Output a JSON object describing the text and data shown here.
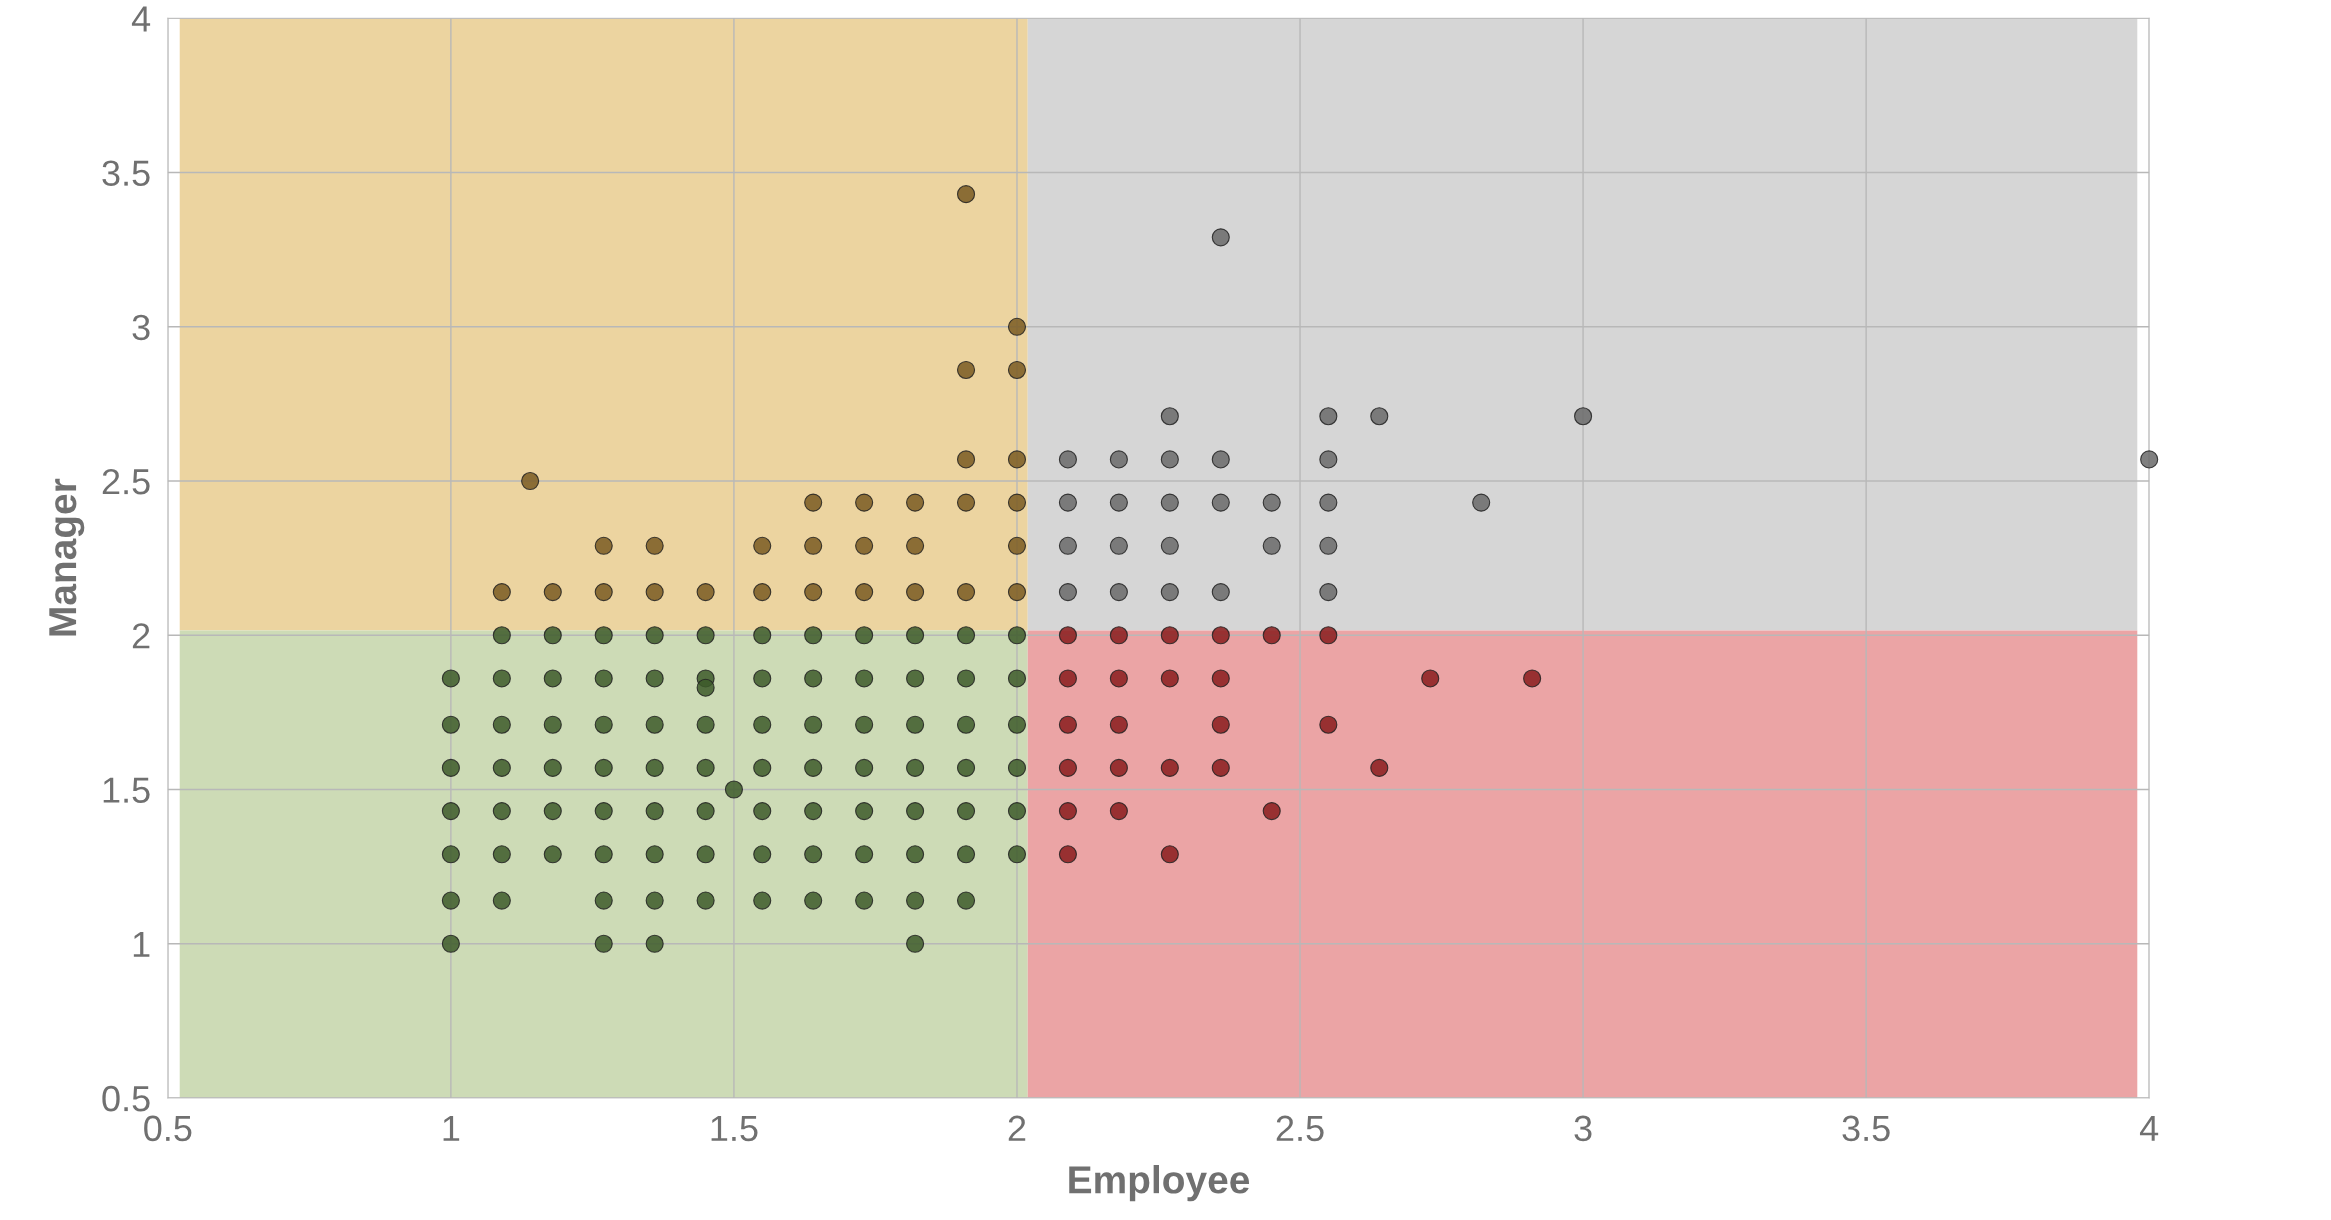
{
  "chart_data": {
    "type": "scatter",
    "xlabel": "Employee",
    "ylabel": "Manager",
    "xlim": [
      0.5,
      4
    ],
    "ylim": [
      0.5,
      4
    ],
    "xticks": [
      0.5,
      1,
      1.5,
      2,
      2.5,
      3,
      3.5,
      4
    ],
    "yticks": [
      0.5,
      1,
      1.5,
      2,
      2.5,
      3,
      3.5,
      4
    ],
    "grid": true,
    "marker": "circle",
    "series": [
      {
        "color": "#3d5a2a",
        "x": [
          1,
          1.09,
          1.18,
          1.27,
          1.36,
          1.45,
          1.55,
          1.64,
          1.73,
          1.82,
          1.91,
          2,
          1.09,
          1.18,
          1.27,
          1.36,
          1.45,
          1.55,
          1.64,
          1.73,
          1.82,
          1.91,
          2,
          1,
          1.09,
          1.18,
          1.27,
          1.36,
          1.45,
          1.55,
          1.64,
          1.73,
          1.82,
          1.91,
          2,
          1,
          1.09,
          1.18,
          1.27,
          1.36,
          1.45,
          1.55,
          1.64,
          1.73,
          1.82,
          1.91,
          2,
          1,
          1.09,
          1.18,
          1.27,
          1.36,
          1.45,
          1.55,
          1.64,
          1.73,
          1.82,
          1.91,
          2,
          1,
          1.09,
          1.18,
          1.27,
          1.36,
          1.45,
          1.55,
          1.64,
          1.73,
          1.82,
          1.91,
          2,
          1,
          1.09,
          1.27,
          1.36,
          1.45,
          1.55,
          1.64,
          1.73,
          1.82,
          1.91,
          1,
          1.27,
          1.36,
          1.82,
          1.5,
          1.45
        ],
        "values": [
          1.86,
          1.86,
          1.86,
          1.86,
          1.86,
          1.86,
          1.86,
          1.86,
          1.86,
          1.86,
          1.86,
          1.86,
          2,
          2,
          2,
          2,
          2,
          2,
          2,
          2,
          2,
          2,
          2,
          1.71,
          1.71,
          1.71,
          1.71,
          1.71,
          1.71,
          1.71,
          1.71,
          1.71,
          1.71,
          1.71,
          1.71,
          1.57,
          1.57,
          1.57,
          1.57,
          1.57,
          1.57,
          1.57,
          1.57,
          1.57,
          1.57,
          1.57,
          1.57,
          1.43,
          1.43,
          1.43,
          1.43,
          1.43,
          1.43,
          1.43,
          1.43,
          1.43,
          1.43,
          1.43,
          1.43,
          1.29,
          1.29,
          1.29,
          1.29,
          1.29,
          1.29,
          1.29,
          1.29,
          1.29,
          1.29,
          1.29,
          1.29,
          1.14,
          1.14,
          1.14,
          1.14,
          1.14,
          1.14,
          1.14,
          1.14,
          1.14,
          1.14,
          1,
          1,
          1,
          1,
          1.5,
          1.83
        ]
      },
      {
        "color": "#7a5a22",
        "x": [
          1.09,
          1.18,
          1.27,
          1.36,
          1.45,
          1.55,
          1.64,
          1.73,
          1.82,
          1.91,
          2,
          1.27,
          1.36,
          1.55,
          1.64,
          1.73,
          1.82,
          2,
          1.64,
          1.73,
          1.82,
          1.91,
          2,
          1.91,
          2,
          1.91,
          2,
          2,
          1.91,
          1.14
        ],
        "values": [
          2.14,
          2.14,
          2.14,
          2.14,
          2.14,
          2.14,
          2.14,
          2.14,
          2.14,
          2.14,
          2.14,
          2.29,
          2.29,
          2.29,
          2.29,
          2.29,
          2.29,
          2.29,
          2.43,
          2.43,
          2.43,
          2.43,
          2.43,
          2.57,
          2.57,
          2.86,
          2.86,
          3,
          3.43,
          2.5
        ]
      },
      {
        "color": "#6a6a6a",
        "x": [
          2.09,
          2.18,
          2.27,
          2.36,
          2.55,
          2.09,
          2.18,
          2.27,
          2.45,
          2.55,
          2.09,
          2.18,
          2.27,
          2.36,
          2.45,
          2.55,
          2.82,
          2.09,
          2.18,
          2.27,
          2.36,
          2.55,
          4,
          2.27,
          2.55,
          2.64,
          3,
          2.36
        ],
        "values": [
          2.14,
          2.14,
          2.14,
          2.14,
          2.14,
          2.29,
          2.29,
          2.29,
          2.29,
          2.29,
          2.43,
          2.43,
          2.43,
          2.43,
          2.43,
          2.43,
          2.43,
          2.57,
          2.57,
          2.57,
          2.57,
          2.57,
          2.57,
          2.71,
          2.71,
          2.71,
          2.71,
          3.29
        ]
      },
      {
        "color": "#8a1c1c",
        "x": [
          2.09,
          2.18,
          2.27,
          2.36,
          2.45,
          2.55,
          2.09,
          2.18,
          2.27,
          2.36,
          2.73,
          2.91,
          2.09,
          2.18,
          2.36,
          2.55,
          2.09,
          2.18,
          2.27,
          2.36,
          2.64,
          2.09,
          2.18,
          2.45,
          2.09,
          2.27
        ],
        "values": [
          2,
          2,
          2,
          2,
          2,
          2,
          1.86,
          1.86,
          1.86,
          1.86,
          1.86,
          1.86,
          1.71,
          1.71,
          1.71,
          1.71,
          1.57,
          1.57,
          1.57,
          1.57,
          1.57,
          1.43,
          1.43,
          1.43,
          1.29,
          1.29
        ]
      }
    ]
  }
}
